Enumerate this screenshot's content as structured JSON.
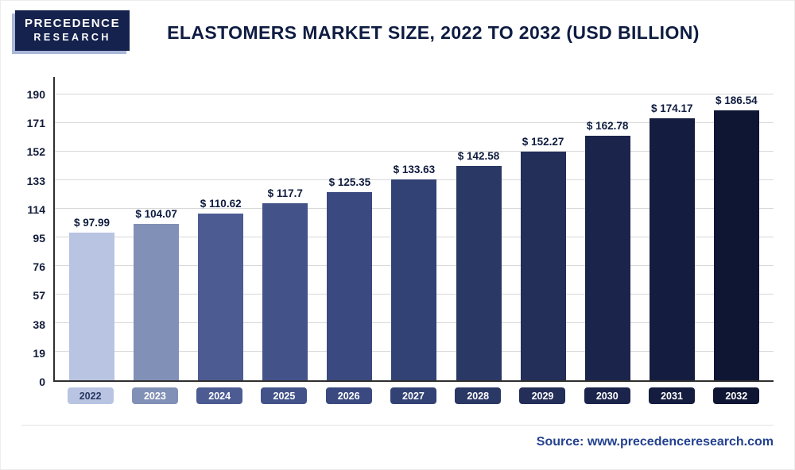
{
  "header": {
    "logo": {
      "line1": "PRECEDENCE",
      "line2": "RESEARCH"
    },
    "title": "Elastomers Market Size, 2022 to 2032 (USD Billion)"
  },
  "footer": {
    "source": "Source: www.precedenceresearch.com"
  },
  "colors": {
    "logo_background": "#15224d",
    "logo_accent": "#a9b6d8",
    "title_text": "#0e1c42",
    "axis_line": "#2f2f2f",
    "gridline": "#d8d8d8",
    "value_label_text": "#0f1c3f",
    "tick_label_text": "#121c3a",
    "source_text": "#23418f"
  },
  "chart_data": {
    "type": "bar",
    "title": "Elastomers Market Size, 2022 to 2032 (USD Billion)",
    "xlabel": "",
    "ylabel": "",
    "categories": [
      "2022",
      "2023",
      "2024",
      "2025",
      "2026",
      "2027",
      "2028",
      "2029",
      "2030",
      "2031",
      "2032"
    ],
    "values": [
      97.99,
      104.07,
      110.62,
      117.7,
      125.35,
      133.63,
      142.58,
      152.27,
      162.78,
      174.17,
      186.54
    ],
    "value_labels": [
      "$ 97.99",
      "$ 104.07",
      "$ 110.62",
      "$ 117.7",
      "$ 125.35",
      "$ 133.63",
      "$ 142.58",
      "$ 152.27",
      "$ 162.78",
      "$ 174.17",
      "$ 186.54"
    ],
    "bar_colors": [
      "#b9c4e3",
      "#8190b6",
      "#4c5c92",
      "#43538a",
      "#3a4a80",
      "#324274",
      "#2a3866",
      "#232e59",
      "#1b254c",
      "#141d3f",
      "#0e1634"
    ],
    "pill_text_colors": [
      "#2a3760",
      "#ffffff",
      "#ffffff",
      "#ffffff",
      "#ffffff",
      "#ffffff",
      "#ffffff",
      "#ffffff",
      "#ffffff",
      "#ffffff",
      "#ffffff"
    ],
    "yticks": [
      0,
      19,
      38,
      57,
      76,
      95,
      114,
      133,
      152,
      171,
      190
    ],
    "ylim": [
      0,
      190
    ],
    "grid": "horizontal",
    "legend": "none"
  }
}
